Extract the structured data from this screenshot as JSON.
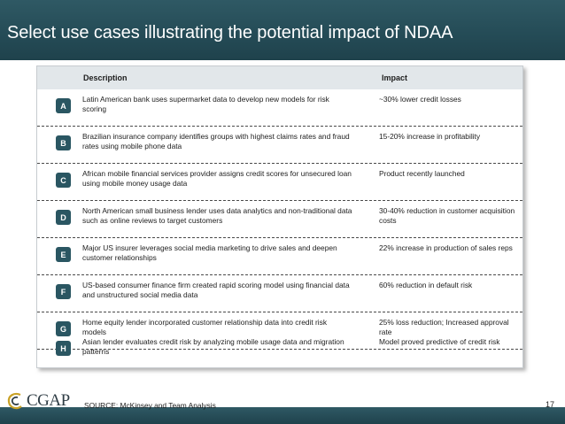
{
  "slide": {
    "title": "Select use cases illustrating the potential impact of NDAA",
    "page_number": "17"
  },
  "table": {
    "headers": {
      "description": "Description",
      "impact": "Impact"
    },
    "rows": [
      {
        "label": "A",
        "description": "Latin American bank uses supermarket data to develop new models for risk scoring",
        "impact": "~30% lower credit losses"
      },
      {
        "label": "B",
        "description": "Brazilian insurance company identifies groups with highest claims rates and fraud rates using mobile phone data",
        "impact": "15-20% increase in profitability"
      },
      {
        "label": "C",
        "description": "African mobile financial services provider assigns credit scores for unsecured loan  using mobile money usage data",
        "impact": "Product recently launched"
      },
      {
        "label": "D",
        "description": "North American small business lender uses data analytics and non-traditional data such as online reviews to target customers",
        "impact": "30-40% reduction in customer acquisition costs"
      },
      {
        "label": "E",
        "description": "Major US insurer leverages social media marketing to drive sales and deepen customer relationships",
        "impact": "22% increase in production of sales reps"
      },
      {
        "label": "F",
        "description": "US-based consumer finance firm created rapid scoring model using financial data and unstructured social media data",
        "impact": "60% reduction in default risk"
      },
      {
        "label": "G",
        "description": "Home equity lender incorporated customer relationship data into credit risk models",
        "impact": "25% loss reduction; Increased approval rate"
      },
      {
        "label": "H",
        "description": "Asian lender evaluates credit risk by analyzing mobile usage data and migration patterns",
        "impact": "Model proved predictive of credit risk"
      }
    ]
  },
  "footer": {
    "logo_text": "CGAP",
    "source": "SOURCE: McKinsey and Team Analysis"
  },
  "colors": {
    "title_bar": "#2a5662",
    "badge": "#2a5662",
    "header_row": "#e2e7ea"
  }
}
